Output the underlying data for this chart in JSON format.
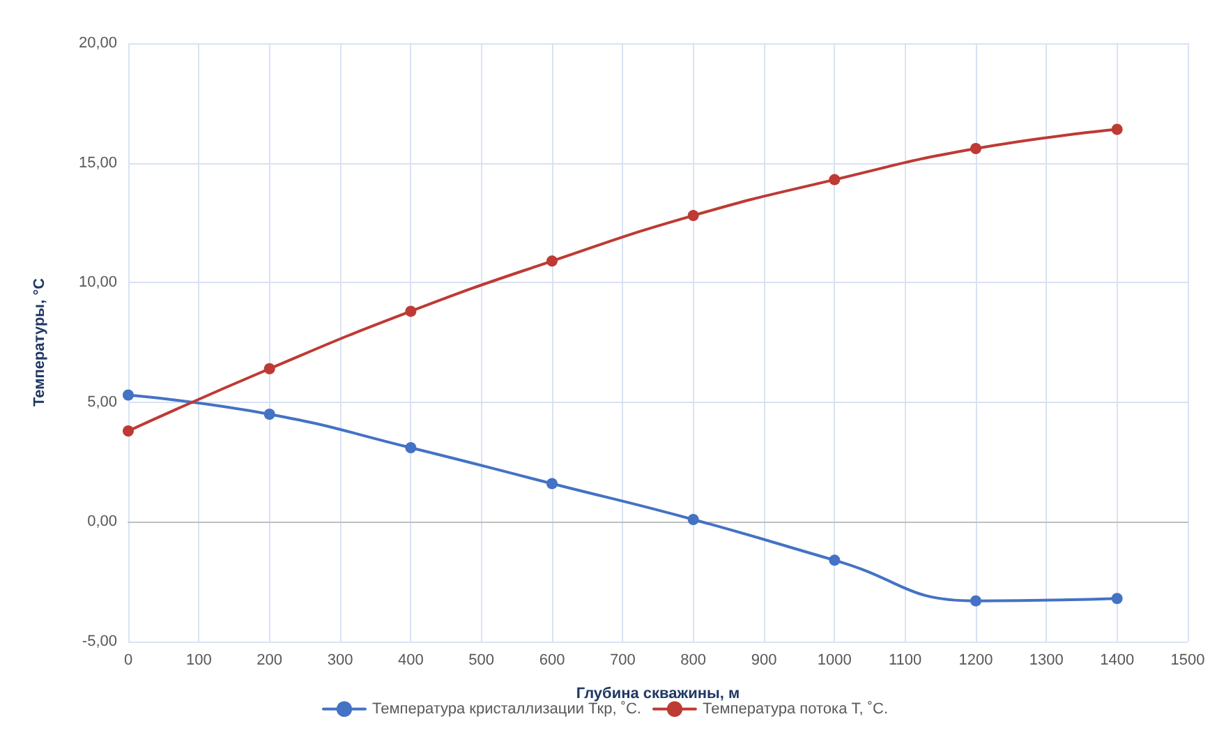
{
  "chart_data": {
    "type": "line",
    "xlabel": "Глубина скважины, м",
    "ylabel": "Температуры, °С",
    "x": [
      0,
      200,
      400,
      600,
      800,
      1000,
      1200,
      1400
    ],
    "series": [
      {
        "name": "Температура кристаллизации Ткр, ˚С.",
        "color": "#4472c4",
        "values": [
          5.3,
          4.5,
          3.1,
          1.6,
          0.1,
          -1.6,
          -3.3,
          -3.2
        ]
      },
      {
        "name": "Температура потока Т, ˚С.",
        "color": "#be3a34",
        "values": [
          3.8,
          6.4,
          8.8,
          10.9,
          12.8,
          14.3,
          15.6,
          16.4
        ]
      }
    ],
    "xlim": [
      0,
      1500
    ],
    "xticks": [
      0,
      100,
      200,
      300,
      400,
      500,
      600,
      700,
      800,
      900,
      1000,
      1100,
      1200,
      1300,
      1400,
      1500
    ],
    "ylim": [
      -5,
      20
    ],
    "yticks": [
      {
        "value": -5,
        "label": "-5,00"
      },
      {
        "value": 0,
        "label": "0,00"
      },
      {
        "value": 5,
        "label": "5,00"
      },
      {
        "value": 10,
        "label": "10,00"
      },
      {
        "value": 15,
        "label": "15,00"
      },
      {
        "value": 20,
        "label": "20,00"
      }
    ],
    "grid": true,
    "legend": "bottom",
    "marker": "circle",
    "line_style": "solid"
  }
}
